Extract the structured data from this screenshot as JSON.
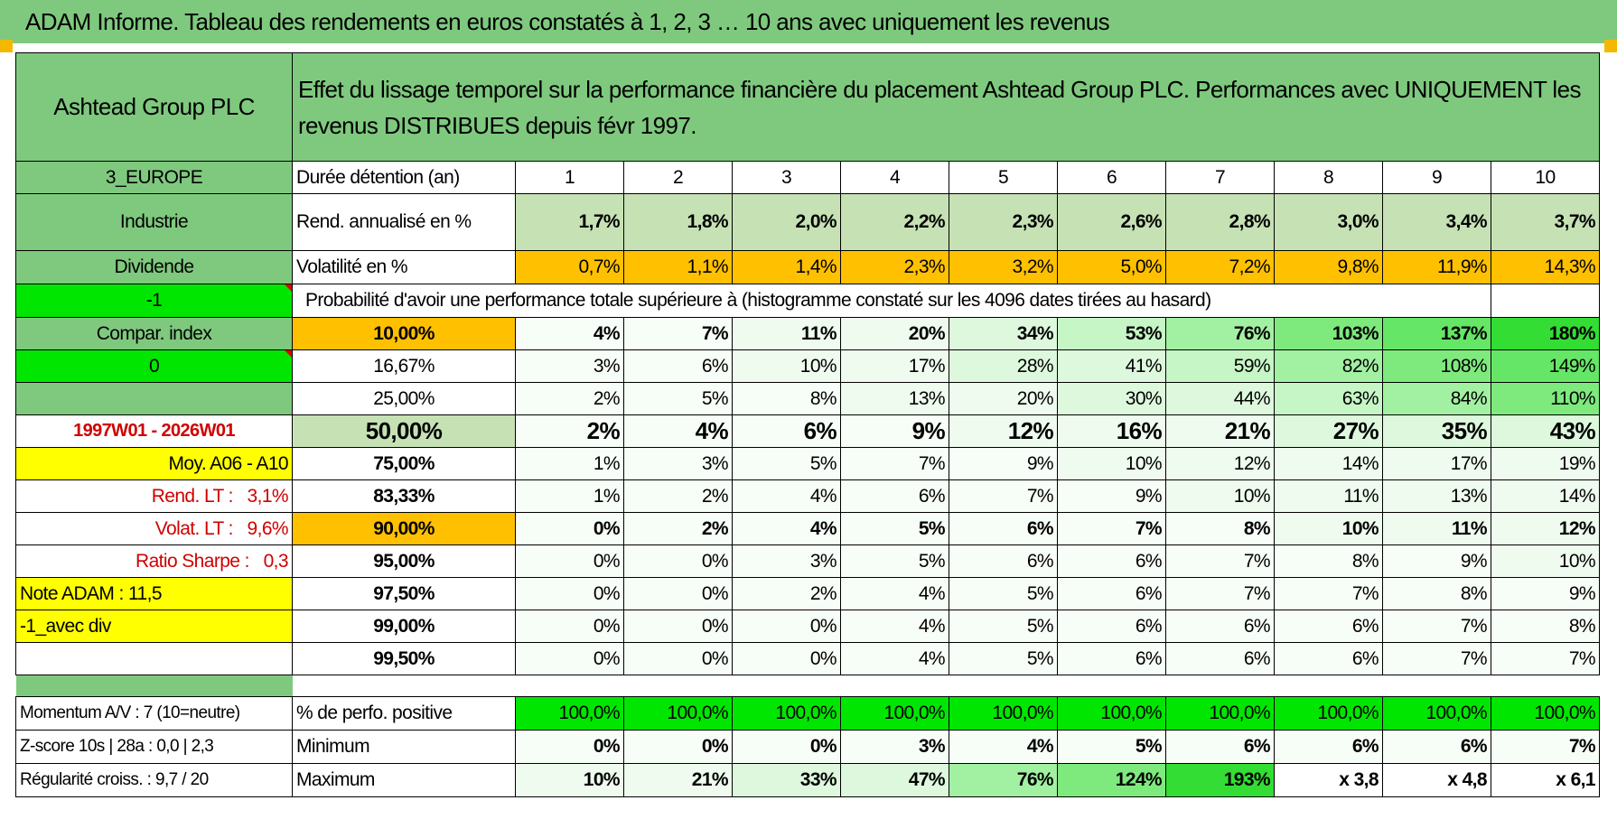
{
  "banner": "ADAM Informe. Tableau des rendements en euros constatés à 1, 2, 3 … 10 ans avec uniquement les revenus",
  "company": "Ashtead Group PLC",
  "headline": "Effet du lissage temporel sur la performance financière du placement Ashtead Group PLC. Performances avec UNIQUEMENT les revenus DISTRIBUES depuis févr 1997.",
  "left": {
    "zone": "3_EUROPE",
    "sector": "Industrie",
    "type": "Dividende",
    "code1": "-1",
    "compar": "Compar. index",
    "code2": "0",
    "period": "1997W01 - 2026W01",
    "moy": "Moy. A06 - A10",
    "rend_label": "Rend. LT :",
    "rend_val": "3,1%",
    "volat_label": "Volat. LT :",
    "volat_val": "9,6%",
    "sharpe_label": "Ratio Sharpe :",
    "sharpe_val": "0,3",
    "note": "Note ADAM : 11,5",
    "avec_div": "-1_avec div",
    "momentum": "Momentum A/V : 7 (10=neutre)",
    "zscore": "Z-score 10s | 28a : 0,0 | 2,3",
    "regularite": "Régularité croiss. : 9,7 / 20"
  },
  "labels": {
    "duree": "Durée détention (an)",
    "rend": "Rend. annualisé en %",
    "vol": "Volatilité en %",
    "proba": "Probabilité d'avoir une performance totale supérieure à (histogramme constaté sur les 4096 dates tirées au hasard)",
    "pos": "% de perfo. positive",
    "min": "Minimum",
    "max": "Maximum"
  },
  "years": [
    "1",
    "2",
    "3",
    "4",
    "5",
    "6",
    "7",
    "8",
    "9",
    "10"
  ],
  "rend": [
    "1,7%",
    "1,8%",
    "2,0%",
    "2,2%",
    "2,3%",
    "2,6%",
    "2,8%",
    "3,0%",
    "3,4%",
    "3,7%"
  ],
  "vol": [
    "0,7%",
    "1,1%",
    "1,4%",
    "2,3%",
    "3,2%",
    "5,0%",
    "7,2%",
    "9,8%",
    "11,9%",
    "14,3%"
  ],
  "pct_rows": [
    {
      "p": "10,00%",
      "v": [
        "4%",
        "7%",
        "11%",
        "20%",
        "34%",
        "53%",
        "76%",
        "103%",
        "137%",
        "180%"
      ]
    },
    {
      "p": "16,67%",
      "v": [
        "3%",
        "6%",
        "10%",
        "17%",
        "28%",
        "41%",
        "59%",
        "82%",
        "108%",
        "149%"
      ]
    },
    {
      "p": "25,00%",
      "v": [
        "2%",
        "5%",
        "8%",
        "13%",
        "20%",
        "30%",
        "44%",
        "63%",
        "84%",
        "110%"
      ]
    },
    {
      "p": "50,00%",
      "v": [
        "2%",
        "4%",
        "6%",
        "9%",
        "12%",
        "16%",
        "21%",
        "27%",
        "35%",
        "43%"
      ]
    },
    {
      "p": "75,00%",
      "v": [
        "1%",
        "3%",
        "5%",
        "7%",
        "9%",
        "10%",
        "12%",
        "14%",
        "17%",
        "19%"
      ]
    },
    {
      "p": "83,33%",
      "v": [
        "1%",
        "2%",
        "4%",
        "6%",
        "7%",
        "9%",
        "10%",
        "11%",
        "13%",
        "14%"
      ]
    },
    {
      "p": "90,00%",
      "v": [
        "0%",
        "2%",
        "4%",
        "5%",
        "6%",
        "7%",
        "8%",
        "10%",
        "11%",
        "12%"
      ]
    },
    {
      "p": "95,00%",
      "v": [
        "0%",
        "0%",
        "3%",
        "5%",
        "6%",
        "6%",
        "7%",
        "8%",
        "9%",
        "10%"
      ]
    },
    {
      "p": "97,50%",
      "v": [
        "0%",
        "0%",
        "2%",
        "4%",
        "5%",
        "6%",
        "7%",
        "7%",
        "8%",
        "9%"
      ]
    },
    {
      "p": "99,00%",
      "v": [
        "0%",
        "0%",
        "0%",
        "4%",
        "5%",
        "6%",
        "6%",
        "6%",
        "7%",
        "8%"
      ]
    },
    {
      "p": "99,50%",
      "v": [
        "0%",
        "0%",
        "0%",
        "4%",
        "5%",
        "6%",
        "6%",
        "6%",
        "7%",
        "7%"
      ]
    }
  ],
  "pos": [
    "100,0%",
    "100,0%",
    "100,0%",
    "100,0%",
    "100,0%",
    "100,0%",
    "100,0%",
    "100,0%",
    "100,0%",
    "100,0%"
  ],
  "min": [
    "0%",
    "0%",
    "0%",
    "3%",
    "4%",
    "5%",
    "6%",
    "6%",
    "6%",
    "7%"
  ],
  "max": [
    "10%",
    "21%",
    "33%",
    "47%",
    "76%",
    "124%",
    "193%",
    "x 3,8",
    "x 4,8",
    "x 6,1"
  ]
}
